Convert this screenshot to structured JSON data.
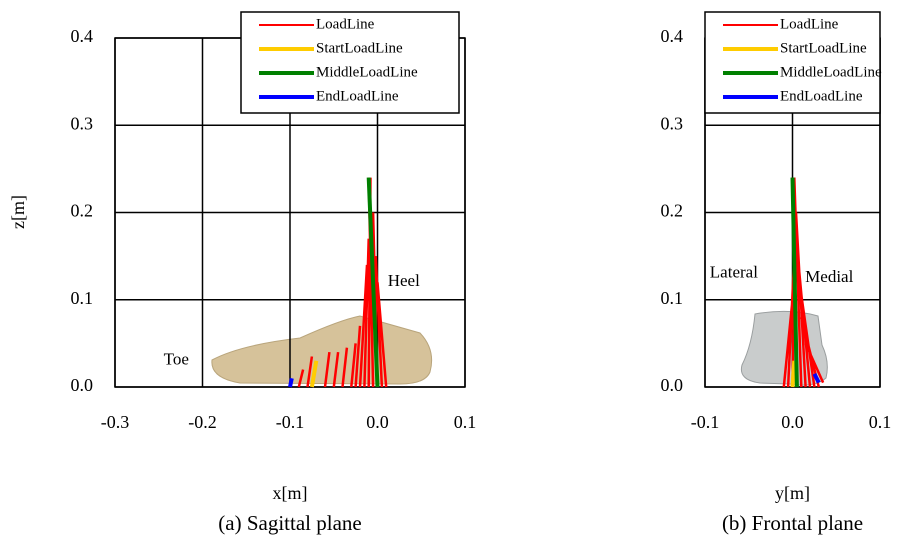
{
  "chart_data": [
    {
      "type": "line",
      "caption": "(a) Sagittal plane",
      "xlabel": "x[m]",
      "ylabel": "z[m]",
      "xlim": [
        -0.3,
        0.1
      ],
      "ylim": [
        0,
        0.4
      ],
      "xticks": [
        -0.3,
        -0.2,
        -0.1,
        {
          "value": 0,
          "label": "0.0"
        },
        0.1
      ],
      "yticks": [
        {
          "value": 0,
          "label": "0.0"
        },
        0.1,
        0.2,
        0.3,
        0.4
      ],
      "grid": true,
      "legend": "upper right",
      "annotations": [
        "Toe",
        "Heel"
      ],
      "series": [
        {
          "name": "LoadLine",
          "color": "#ff0000",
          "x": [
            -0.09,
            -0.085,
            null,
            -0.08,
            -0.075,
            null,
            -0.06,
            -0.055,
            null,
            -0.05,
            -0.045,
            null,
            -0.04,
            -0.035,
            null,
            -0.03,
            -0.025,
            null,
            -0.025,
            -0.02,
            null,
            -0.02,
            -0.012,
            null,
            -0.015,
            -0.01,
            null,
            -0.01,
            -0.008,
            null,
            -0.005,
            -0.01,
            null,
            0.0,
            -0.005,
            null,
            0.005,
            -0.002,
            null,
            0.01,
            0.0
          ],
          "values": [
            0,
            0.02,
            null,
            0,
            0.035,
            null,
            0,
            0.04,
            null,
            0,
            0.04,
            null,
            0,
            0.045,
            null,
            0,
            0.05,
            null,
            0,
            0.07,
            null,
            0,
            0.14,
            null,
            0,
            0.17,
            null,
            0,
            0.24,
            null,
            0,
            0.24,
            null,
            0,
            0.2,
            null,
            0,
            0.15,
            null,
            0,
            0.12
          ]
        },
        {
          "name": "StartLoadLine",
          "color": "#ffcc00",
          "x": [
            -0.075,
            -0.07
          ],
          "values": [
            0,
            0.03
          ]
        },
        {
          "name": "MiddleLoadLine",
          "color": "#008000",
          "x": [
            0.0,
            -0.01
          ],
          "values": [
            0,
            0.24
          ]
        },
        {
          "name": "EndLoadLine",
          "color": "#0000ff",
          "x": [
            -0.1,
            -0.098
          ],
          "values": [
            0,
            0.01
          ]
        }
      ]
    },
    {
      "type": "line",
      "caption": "(b) Frontal plane",
      "xlabel": "y[m]",
      "xlim": [
        -0.1,
        0.1
      ],
      "ylim": [
        0,
        0.4
      ],
      "xticks": [
        -0.1,
        {
          "value": 0,
          "label": "0.0"
        },
        0.1
      ],
      "yticks": [
        {
          "value": 0,
          "label": "0.0"
        },
        0.1,
        0.2,
        0.3,
        0.4
      ],
      "grid": true,
      "legend": "upper right",
      "annotations": [
        "Lateral",
        "Medial"
      ],
      "series": [
        {
          "name": "LoadLine",
          "color": "#ff0000",
          "x": [
            -0.01,
            0.0,
            null,
            -0.005,
            0.002,
            null,
            0.0,
            0.003,
            null,
            0.005,
            0.0,
            null,
            0.01,
            0.002,
            null,
            0.015,
            0.004,
            null,
            0.02,
            0.006,
            null,
            0.025,
            0.008,
            null,
            0.03,
            0.01,
            null,
            0.035,
            0.015
          ],
          "values": [
            0,
            0.1,
            null,
            0,
            0.15,
            null,
            0,
            0.2,
            null,
            0,
            0.24,
            null,
            0,
            0.24,
            null,
            0,
            0.2,
            null,
            0,
            0.15,
            null,
            0,
            0.12,
            null,
            0,
            0.08,
            null,
            0.005,
            0.05
          ]
        },
        {
          "name": "StartLoadLine",
          "color": "#ffcc00",
          "x": [
            0.0,
            0.002
          ],
          "values": [
            0,
            0.03
          ]
        },
        {
          "name": "MiddleLoadLine",
          "color": "#008000",
          "x": [
            0.005,
            0.0
          ],
          "values": [
            0,
            0.24
          ]
        },
        {
          "name": "EndLoadLine",
          "color": "#0000ff",
          "x": [
            0.03,
            0.025
          ],
          "values": [
            0.005,
            0.015
          ]
        }
      ]
    }
  ]
}
